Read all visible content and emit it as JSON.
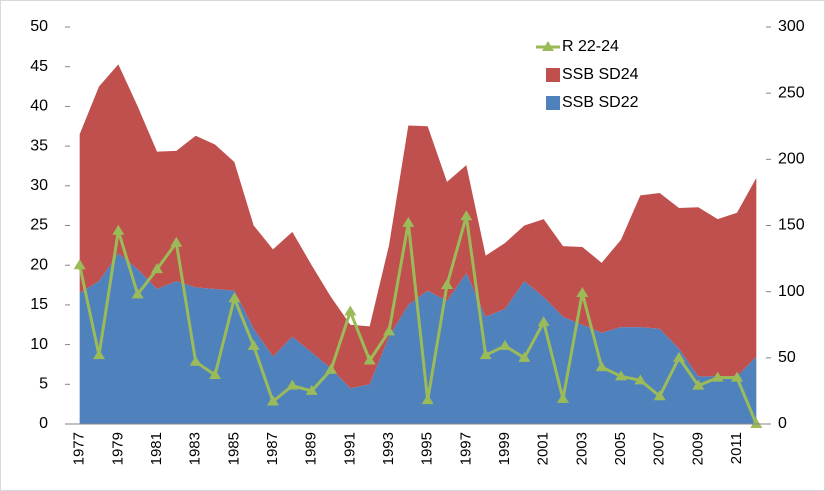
{
  "chart_data": {
    "type": "area",
    "stacked": true,
    "categories": [
      "1977",
      null,
      "1979",
      null,
      "1981",
      null,
      "1983",
      null,
      "1985",
      null,
      "1987",
      null,
      "1989",
      null,
      "1991",
      null,
      "1993",
      null,
      "1995",
      null,
      "1997",
      null,
      "1999",
      null,
      "2001",
      null,
      "2003",
      null,
      "2005",
      null,
      "2007",
      null,
      "2009",
      null,
      "2011",
      null
    ],
    "series": [
      {
        "name": "SSB SD22",
        "type": "area",
        "color": "#4f81bd",
        "values": [
          16.5,
          18,
          21.5,
          19.5,
          17,
          18,
          17.2,
          17,
          16.8,
          12,
          8.5,
          11,
          9,
          7,
          4.5,
          5,
          11,
          15,
          16.8,
          15.5,
          19,
          13.5,
          14.5,
          18,
          16,
          13.5,
          12.5,
          11.5,
          12.2,
          12.2,
          12,
          9.5,
          6,
          6,
          6,
          8.5
        ]
      },
      {
        "name": "SSB SD24",
        "type": "area",
        "color": "#c0504d",
        "values": [
          20,
          24.5,
          23.8,
          20.5,
          17.3,
          16.4,
          19.1,
          18.2,
          16.2,
          13,
          13.5,
          13.2,
          11,
          9,
          8,
          7.3,
          11.5,
          22.6,
          20.7,
          15,
          13.6,
          7.7,
          8.3,
          7,
          9.8,
          8.9,
          9.8,
          8.8,
          11,
          16.6,
          17.1,
          17.7,
          21.3,
          19.8,
          20.6,
          22.5
        ]
      },
      {
        "name": "R 22-24",
        "type": "line",
        "axis": "y2",
        "color": "#9bbb59",
        "values": [
          120,
          52,
          146,
          98,
          117,
          137,
          47,
          37,
          95,
          59,
          17,
          29,
          25,
          41,
          85,
          48,
          70,
          152,
          18,
          105,
          157,
          52,
          59,
          50,
          77,
          19,
          99,
          43,
          36,
          33,
          21,
          50,
          29,
          35,
          35,
          0
        ]
      }
    ],
    "ylim": [
      0,
      50
    ],
    "yticks": [
      0,
      5,
      10,
      15,
      20,
      25,
      30,
      35,
      40,
      45,
      50
    ],
    "y2lim": [
      0,
      300
    ],
    "y2ticks": [
      0,
      50,
      100,
      150,
      200,
      250,
      300
    ],
    "legend": "top-right"
  }
}
